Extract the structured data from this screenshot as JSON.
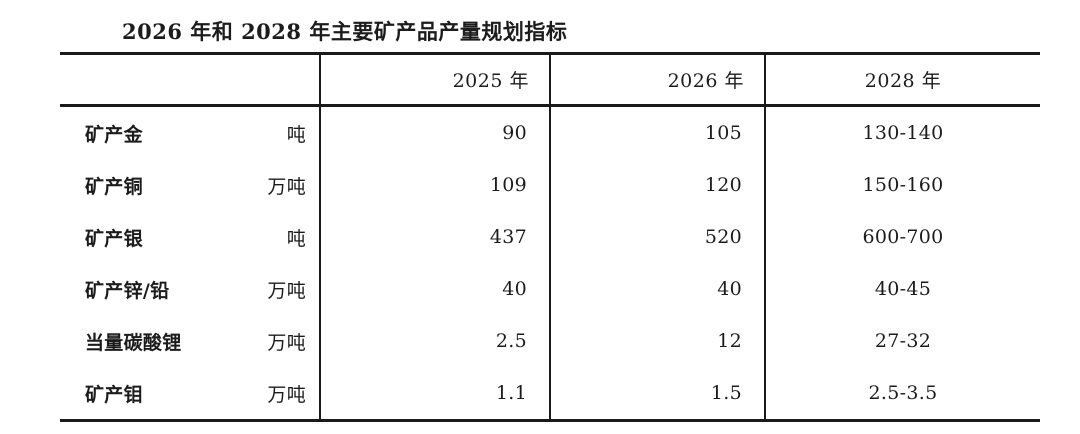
{
  "title": "2026 年和 2028 年主要矿产品产量规划指标",
  "table": {
    "header": {
      "col_product": "",
      "col_2025": "2025 年",
      "col_2026": "2026 年",
      "col_2028": "2028 年"
    },
    "rows": [
      {
        "name": "矿产金",
        "unit": "吨",
        "y2025": "90",
        "y2026": "105",
        "y2028": "130-140"
      },
      {
        "name": "矿产铜",
        "unit": "万吨",
        "y2025": "109",
        "y2026": "120",
        "y2028": "150-160"
      },
      {
        "name": "矿产银",
        "unit": "吨",
        "y2025": "437",
        "y2026": "520",
        "y2028": "600-700"
      },
      {
        "name": "矿产锌/铅",
        "unit": "万吨",
        "y2025": "40",
        "y2026": "40",
        "y2028": "40-45"
      },
      {
        "name": "当量碳酸锂",
        "unit": "万吨",
        "y2025": "2.5",
        "y2026": "12",
        "y2028": "27-32"
      },
      {
        "name": "矿产钼",
        "unit": "万吨",
        "y2025": "1.1",
        "y2026": "1.5",
        "y2028": "2.5-3.5"
      }
    ]
  }
}
